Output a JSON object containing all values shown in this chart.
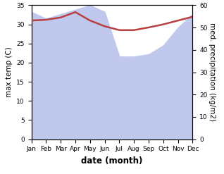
{
  "months": [
    "Jan",
    "Feb",
    "Mar",
    "Apr",
    "May",
    "Jun",
    "Jul",
    "Aug",
    "Sep",
    "Oct",
    "Nov",
    "Dec"
  ],
  "temp": [
    31.0,
    31.2,
    31.8,
    33.2,
    31.0,
    29.5,
    28.5,
    28.5,
    29.2,
    30.0,
    31.0,
    32.0
  ],
  "precip": [
    57,
    54,
    56,
    58,
    60,
    57,
    37,
    37,
    38,
    42,
    50,
    56
  ],
  "temp_color": "#b84040",
  "precip_fill_color": "#c0c8ee",
  "left_ylim": [
    0,
    35
  ],
  "right_ylim": [
    0,
    60
  ],
  "left_yticks": [
    0,
    5,
    10,
    15,
    20,
    25,
    30,
    35
  ],
  "right_yticks": [
    0,
    10,
    20,
    30,
    40,
    50,
    60
  ],
  "xlabel": "date (month)",
  "ylabel_left": "max temp (C)",
  "ylabel_right": "med. precipitation (kg/m2)",
  "tick_fontsize": 6.5,
  "label_fontsize": 7.5,
  "xlabel_fontsize": 8.5,
  "linewidth": 1.8
}
